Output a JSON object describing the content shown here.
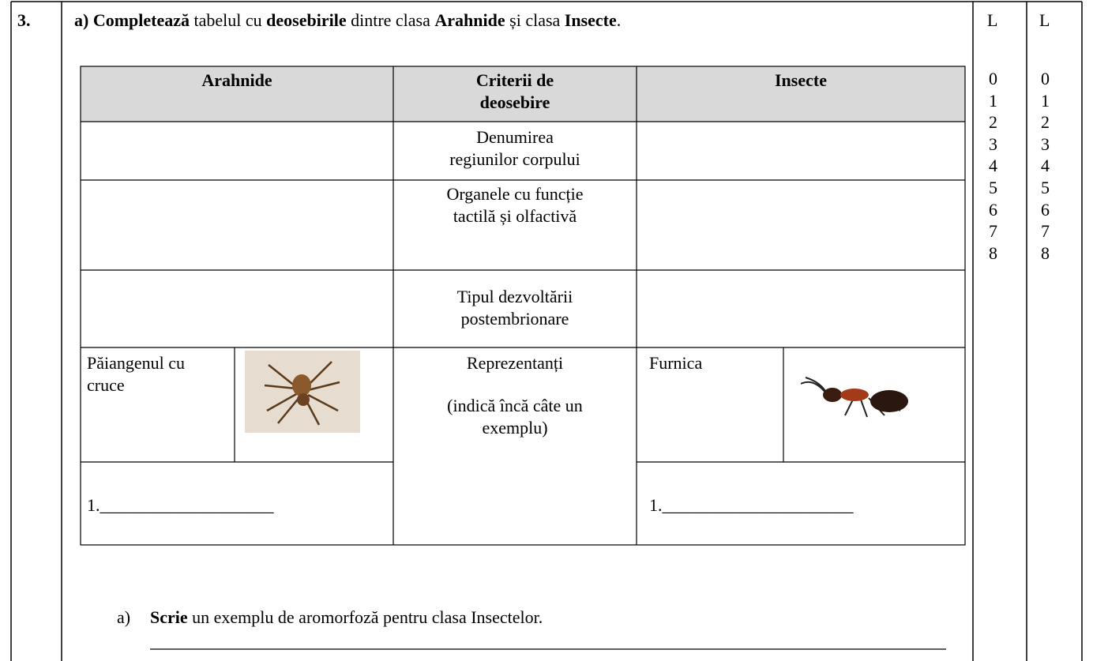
{
  "question": {
    "number": "3.",
    "task_a": [
      "a) Completează",
      " tabelul cu ",
      "deosebirile",
      " dintre clasa ",
      "Arahnide",
      " și clasa ",
      "Insecte",
      "."
    ],
    "table": {
      "headers": [
        "Arahnide",
        "Criterii de deosebire",
        "Insecte"
      ],
      "rows": [
        [
          "Denumirea",
          "regiunilor corpului"
        ],
        [
          "Organele cu funcție",
          "tactilă și olfactivă"
        ],
        [
          "Tipul dezvoltării",
          "postembrionare"
        ]
      ],
      "representatives": {
        "label": "Reprezentanți",
        "note": "(indică încă câte un exemplu)",
        "arahnide_example": "Păiangenul cu cruce",
        "insecte_example": "Furnica",
        "arahnide_blank": "1.____________________",
        "insecte_blank": "1.______________________"
      }
    },
    "task_b": {
      "marker": "a)",
      "parts": [
        "Scrie",
        " un exemplu de aromorfoză pentru clasa Insectelor."
      ]
    }
  },
  "scores": [
    {
      "header": "L",
      "levels": [
        0,
        1,
        2,
        3,
        4,
        5,
        6,
        7,
        8
      ]
    },
    {
      "header": "L",
      "levels": [
        0,
        1,
        2,
        3,
        4,
        5,
        6,
        7,
        8
      ]
    }
  ]
}
